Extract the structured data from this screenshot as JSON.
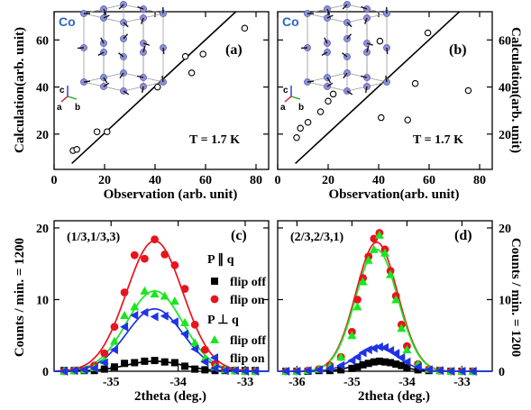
{
  "chart_data": [
    {
      "id": "a",
      "type": "scatter",
      "panel_label": "(a)",
      "xlabel": "Observation (arb. unit)",
      "ylabel": "Calculation(arb. unit)",
      "xlim": [
        0,
        85
      ],
      "ylim": [
        5,
        72
      ],
      "xticks": [
        0,
        20,
        40,
        60,
        80
      ],
      "yticks": [
        20,
        40,
        60
      ],
      "annotation": "T = 1.7 K",
      "inset_label": "Co",
      "inset_axes": [
        "c",
        "a",
        "b"
      ],
      "points": [
        [
          7.5,
          13
        ],
        [
          9,
          13.5
        ],
        [
          17,
          21
        ],
        [
          21,
          21
        ],
        [
          41,
          40
        ],
        [
          52,
          53
        ],
        [
          54.5,
          46
        ],
        [
          59,
          54
        ],
        [
          75.5,
          65
        ]
      ],
      "fit_line": [
        [
          7,
          7.5
        ],
        [
          72,
          72
        ]
      ]
    },
    {
      "id": "b",
      "type": "scatter",
      "panel_label": "(b)",
      "xlabel": "Observation(arb. unit)",
      "ylabel": "Calculation(arb. unit)",
      "xlim": [
        0,
        85
      ],
      "ylim": [
        5,
        72
      ],
      "xticks": [
        0,
        20,
        40,
        60,
        80
      ],
      "yticks": [
        20,
        40,
        60
      ],
      "annotation": "T = 1.7 K",
      "inset_label": "Co",
      "inset_axes": [
        "c",
        "a",
        "b"
      ],
      "points": [
        [
          7.5,
          18.5
        ],
        [
          9,
          22.5
        ],
        [
          12,
          25
        ],
        [
          17,
          29.5
        ],
        [
          20,
          34
        ],
        [
          22,
          37
        ],
        [
          40.5,
          59.5
        ],
        [
          41,
          27
        ],
        [
          51.5,
          26
        ],
        [
          54.5,
          41.5
        ],
        [
          59.5,
          63
        ],
        [
          75.5,
          38.5
        ]
      ],
      "fit_line": [
        [
          7,
          7.5
        ],
        [
          72,
          72
        ]
      ]
    },
    {
      "id": "c",
      "type": "line",
      "panel_label": "(c)",
      "reflection": "(1/3,1/3,3)",
      "xlabel": "2theta (deg.)",
      "ylabel": "Counts / min. = 1200",
      "xlim": [
        -35.85,
        -32.65
      ],
      "ylim": [
        0,
        21
      ],
      "xticks": [
        -35,
        -34,
        -33
      ],
      "yticks": [
        0,
        10,
        20
      ],
      "center": -34.35,
      "sigma": 0.42,
      "series": [
        {
          "name": "flip off",
          "group": "P ∥ q",
          "marker": "square",
          "color": "#000000",
          "amp": 1.4,
          "x": [
            -35.7,
            -35.55,
            -35.4,
            -35.25,
            -35.1,
            -34.95,
            -34.8,
            -34.65,
            -34.5,
            -34.35,
            -34.2,
            -34.05,
            -33.9,
            -33.75,
            -33.6,
            -33.45,
            -33.3,
            -33.15,
            -33.0,
            -32.85
          ],
          "y": [
            0.1,
            0.1,
            0.1,
            0.1,
            0.3,
            0.6,
            1.1,
            1.2,
            1.4,
            1.5,
            1.3,
            1.2,
            0.7,
            0.3,
            0.2,
            0.1,
            0.1,
            0.1,
            0.1,
            0.1
          ]
        },
        {
          "name": "flip on",
          "group": "P ∥ q",
          "marker": "circle",
          "color": "#e8141d",
          "amp": 18.2,
          "x": [
            -35.7,
            -35.55,
            -35.4,
            -35.25,
            -35.1,
            -34.95,
            -34.8,
            -34.65,
            -34.5,
            -34.35,
            -34.2,
            -34.05,
            -33.9,
            -33.75,
            -33.6,
            -33.45,
            -33.3,
            -33.15,
            -33.0,
            -32.85
          ],
          "y": [
            0.0,
            0.1,
            0.2,
            0.8,
            2.5,
            6.2,
            11.0,
            16.2,
            15.7,
            18.4,
            16.3,
            14.8,
            11.5,
            6.5,
            3.0,
            1.0,
            0.3,
            0.1,
            0.0,
            0.0
          ]
        },
        {
          "name": "flip off",
          "group": "P ⊥ q",
          "marker": "triangle-up",
          "color": "#19e61f",
          "amp": 11.2,
          "x": [
            -35.7,
            -35.55,
            -35.4,
            -35.25,
            -35.1,
            -34.95,
            -34.8,
            -34.65,
            -34.5,
            -34.35,
            -34.2,
            -34.05,
            -33.9,
            -33.75,
            -33.6,
            -33.45,
            -33.3,
            -33.15,
            -33.0,
            -32.85
          ],
          "y": [
            0.0,
            0.1,
            0.2,
            0.5,
            1.5,
            4.2,
            7.8,
            9.0,
            11.2,
            10.8,
            10.5,
            9.8,
            6.8,
            4.0,
            1.8,
            0.6,
            0.2,
            0.1,
            0.0,
            0.0
          ]
        },
        {
          "name": "flip on",
          "group": "P ⊥ q",
          "marker": "triangle-left",
          "color": "#1f33e6",
          "amp": 8.7,
          "x": [
            -35.7,
            -35.55,
            -35.4,
            -35.25,
            -35.1,
            -34.95,
            -34.8,
            -34.65,
            -34.5,
            -34.35,
            -34.2,
            -34.05,
            -33.9,
            -33.75,
            -33.6,
            -33.45,
            -33.3,
            -33.15,
            -33.0,
            -32.85
          ],
          "y": [
            0.0,
            0.1,
            0.2,
            0.4,
            1.2,
            3.0,
            6.2,
            7.8,
            8.2,
            7.6,
            7.7,
            6.9,
            5.2,
            3.1,
            1.3,
            0.4,
            0.1,
            0.1,
            0.0,
            0.0
          ]
        }
      ]
    },
    {
      "id": "d",
      "type": "line",
      "panel_label": "(d)",
      "reflection": "(2/3,2/3,1)",
      "xlabel": "2theta (deg.)",
      "ylabel": "Counts / min. = 1200",
      "xlim": [
        -36.35,
        -32.45
      ],
      "ylim": [
        0,
        21
      ],
      "xticks": [
        -36,
        -35,
        -34,
        -33
      ],
      "yticks": [
        0,
        10,
        20
      ],
      "center": -34.55,
      "sigma": 0.38,
      "series": [
        {
          "name": "flip off",
          "group": "P ∥ q",
          "marker": "square",
          "color": "#000000",
          "amp": 1.3,
          "x": [
            -36.2,
            -36.0,
            -35.8,
            -35.6,
            -35.4,
            -35.2,
            -35.0,
            -34.9,
            -34.8,
            -34.7,
            -34.6,
            -34.5,
            -34.4,
            -34.3,
            -34.2,
            -34.1,
            -34.0,
            -33.8,
            -33.6,
            -33.4,
            -33.2,
            -33.0,
            -32.8
          ],
          "y": [
            0.0,
            0.0,
            0.0,
            0.1,
            0.1,
            0.2,
            0.4,
            0.6,
            0.9,
            1.1,
            1.3,
            1.4,
            1.3,
            1.2,
            1.0,
            0.8,
            0.5,
            0.2,
            0.1,
            0.1,
            0.0,
            0.0,
            0.0
          ]
        },
        {
          "name": "flip on",
          "group": "P ∥ q",
          "marker": "circle",
          "color": "#e8141d",
          "amp": 18.0,
          "x": [
            -36.2,
            -36.0,
            -35.8,
            -35.6,
            -35.4,
            -35.2,
            -35.0,
            -34.9,
            -34.8,
            -34.7,
            -34.6,
            -34.5,
            -34.4,
            -34.3,
            -34.2,
            -34.1,
            -34.0,
            -33.8,
            -33.6,
            -33.4,
            -33.2,
            -33.0,
            -32.8
          ],
          "y": [
            0.0,
            0.0,
            0.1,
            0.3,
            0.8,
            2.0,
            5.5,
            10.0,
            13.0,
            16.0,
            18.5,
            19.3,
            17.0,
            14.0,
            10.5,
            6.5,
            3.5,
            1.0,
            0.3,
            0.1,
            0.0,
            0.0,
            0.0
          ]
        },
        {
          "name": "flip off",
          "group": "P ⊥ q",
          "marker": "triangle-up",
          "color": "#19e61f",
          "amp": 17.0,
          "x": [
            -36.2,
            -36.0,
            -35.8,
            -35.6,
            -35.4,
            -35.2,
            -35.0,
            -34.9,
            -34.8,
            -34.7,
            -34.6,
            -34.5,
            -34.4,
            -34.3,
            -34.2,
            -34.1,
            -34.0,
            -33.8,
            -33.6,
            -33.4,
            -33.2,
            -33.0,
            -32.8
          ],
          "y": [
            0.0,
            0.0,
            0.1,
            0.3,
            0.7,
            2.0,
            5.0,
            9.0,
            12.5,
            15.5,
            17.0,
            19.0,
            16.5,
            13.5,
            10.0,
            6.0,
            3.0,
            1.0,
            0.3,
            0.1,
            0.0,
            0.0,
            0.0
          ]
        },
        {
          "name": "flip on",
          "group": "P ⊥ q",
          "marker": "triangle-left",
          "color": "#1f33e6",
          "amp": 3.3,
          "x": [
            -36.2,
            -36.0,
            -35.8,
            -35.6,
            -35.4,
            -35.2,
            -35.0,
            -34.9,
            -34.8,
            -34.7,
            -34.6,
            -34.5,
            -34.4,
            -34.3,
            -34.2,
            -34.1,
            -34.0,
            -33.8,
            -33.6,
            -33.4,
            -33.2,
            -33.0,
            -32.8
          ],
          "y": [
            0.0,
            0.0,
            0.1,
            0.2,
            0.4,
            0.8,
            1.5,
            2.0,
            2.6,
            3.0,
            3.2,
            3.4,
            3.3,
            2.9,
            2.5,
            1.9,
            1.3,
            0.6,
            0.2,
            0.1,
            0.0,
            0.0,
            0.0
          ]
        }
      ]
    }
  ],
  "legend": {
    "group_parallel": "P ∥ q",
    "group_perp": "P ⊥ q",
    "flip_off": "flip off",
    "flip_on": "flip on"
  },
  "colors": {
    "black": "#000000",
    "red": "#e8141d",
    "green": "#19e61f",
    "blue": "#1f33e6",
    "co_atom": "#8c8fd8",
    "co_label": "#2a66c8"
  }
}
